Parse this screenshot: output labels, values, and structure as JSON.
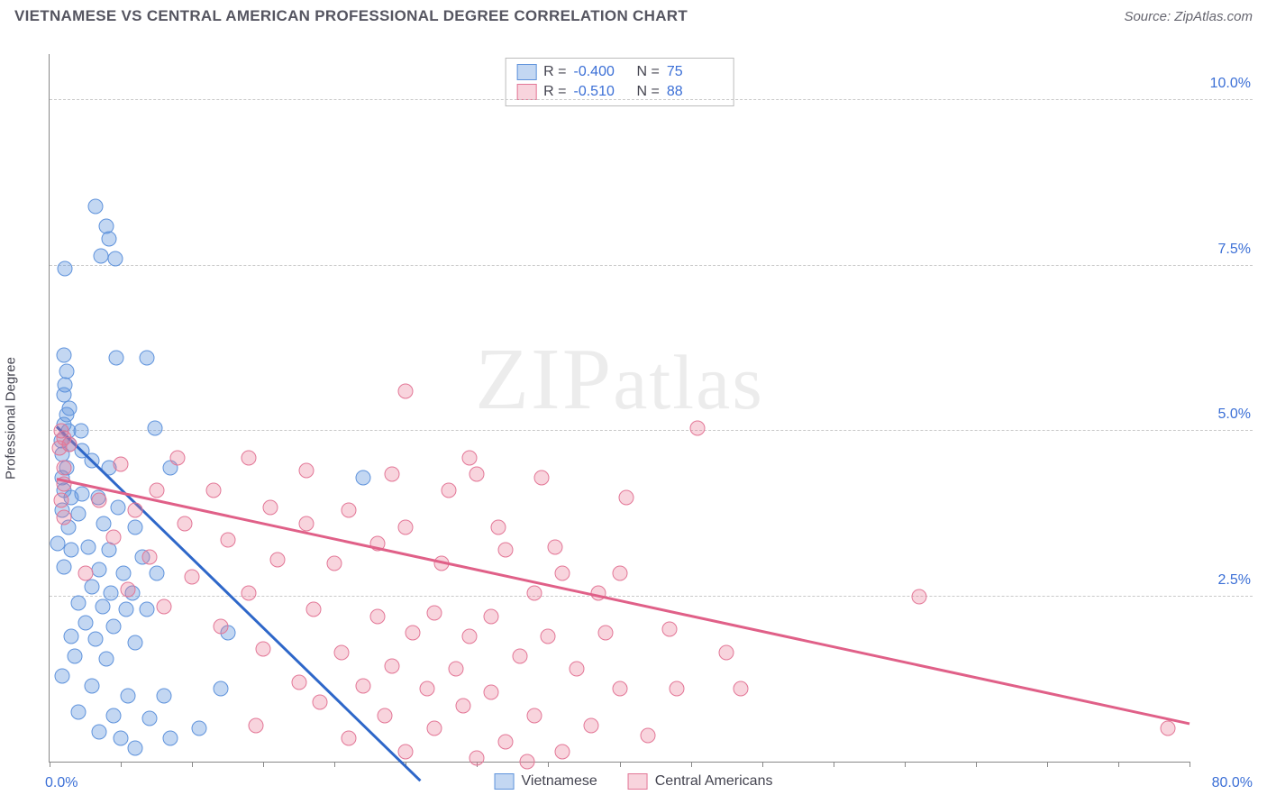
{
  "header": {
    "title": "VIETNAMESE VS CENTRAL AMERICAN PROFESSIONAL DEGREE CORRELATION CHART",
    "source": "Source: ZipAtlas.com"
  },
  "chart": {
    "type": "scatter",
    "ylabel": "Professional Degree",
    "watermark": "ZIPatlas",
    "background_color": "#ffffff",
    "grid_color": "#c9c9c9",
    "axis_color": "#888888",
    "marker_radius": 8.5,
    "marker_border_width": 1,
    "xlim": [
      0,
      80
    ],
    "ylim": [
      0,
      10.7
    ],
    "x_origin_label": "0.0%",
    "x_max_label": "80.0%",
    "x_ticks": [
      0,
      5,
      10,
      15,
      20,
      25,
      30,
      35,
      40,
      45,
      50,
      55,
      60,
      65,
      70,
      75,
      80
    ],
    "y_gridlines": [
      {
        "value": 2.5,
        "label": "2.5%"
      },
      {
        "value": 5.0,
        "label": "5.0%"
      },
      {
        "value": 7.5,
        "label": "7.5%"
      },
      {
        "value": 10.0,
        "label": "10.0%"
      }
    ],
    "series": [
      {
        "key": "vietnamese",
        "label": "Vietnamese",
        "fill": "rgba(96,150,222,0.38)",
        "stroke": "#5f93dc",
        "trend_color": "#2e67c9",
        "r": "-0.400",
        "n": "75",
        "trend": {
          "x1": 0.5,
          "y1": 5.05,
          "x2": 26.0,
          "y2": -0.3
        },
        "points": [
          [
            3.2,
            8.4
          ],
          [
            4.0,
            8.1
          ],
          [
            4.2,
            7.9
          ],
          [
            3.6,
            7.65
          ],
          [
            4.6,
            7.6
          ],
          [
            1.1,
            7.45
          ],
          [
            1.0,
            6.15
          ],
          [
            1.2,
            5.9
          ],
          [
            4.7,
            6.1
          ],
          [
            1.0,
            5.55
          ],
          [
            1.1,
            5.7
          ],
          [
            6.8,
            6.1
          ],
          [
            1.4,
            5.35
          ],
          [
            1.2,
            5.25
          ],
          [
            1.0,
            5.1
          ],
          [
            1.3,
            5.0
          ],
          [
            2.2,
            5.0
          ],
          [
            7.4,
            5.05
          ],
          [
            0.8,
            4.85
          ],
          [
            1.4,
            4.8
          ],
          [
            0.9,
            4.65
          ],
          [
            2.3,
            4.7
          ],
          [
            3.0,
            4.55
          ],
          [
            1.2,
            4.45
          ],
          [
            0.9,
            4.3
          ],
          [
            4.2,
            4.45
          ],
          [
            8.5,
            4.45
          ],
          [
            22.0,
            4.3
          ],
          [
            1.0,
            4.1
          ],
          [
            1.5,
            4.0
          ],
          [
            2.3,
            4.05
          ],
          [
            3.4,
            4.0
          ],
          [
            0.9,
            3.8
          ],
          [
            2.0,
            3.75
          ],
          [
            4.8,
            3.85
          ],
          [
            1.3,
            3.55
          ],
          [
            3.8,
            3.6
          ],
          [
            6.0,
            3.55
          ],
          [
            0.6,
            3.3
          ],
          [
            1.5,
            3.2
          ],
          [
            2.7,
            3.25
          ],
          [
            4.2,
            3.2
          ],
          [
            6.5,
            3.1
          ],
          [
            1.0,
            2.95
          ],
          [
            3.5,
            2.9
          ],
          [
            5.2,
            2.85
          ],
          [
            7.5,
            2.85
          ],
          [
            3.0,
            2.65
          ],
          [
            4.3,
            2.55
          ],
          [
            5.8,
            2.55
          ],
          [
            2.0,
            2.4
          ],
          [
            3.7,
            2.35
          ],
          [
            5.4,
            2.3
          ],
          [
            6.8,
            2.3
          ],
          [
            2.5,
            2.1
          ],
          [
            4.5,
            2.05
          ],
          [
            1.5,
            1.9
          ],
          [
            3.2,
            1.85
          ],
          [
            6.0,
            1.8
          ],
          [
            1.8,
            1.6
          ],
          [
            4.0,
            1.55
          ],
          [
            12.5,
            1.95
          ],
          [
            0.9,
            1.3
          ],
          [
            3.0,
            1.15
          ],
          [
            5.5,
            1.0
          ],
          [
            8.0,
            1.0
          ],
          [
            12.0,
            1.1
          ],
          [
            2.0,
            0.75
          ],
          [
            4.5,
            0.7
          ],
          [
            7.0,
            0.65
          ],
          [
            3.5,
            0.45
          ],
          [
            5.0,
            0.35
          ],
          [
            8.5,
            0.35
          ],
          [
            10.5,
            0.5
          ],
          [
            6.0,
            0.2
          ]
        ]
      },
      {
        "key": "central",
        "label": "Central Americans",
        "fill": "rgba(232,120,150,0.32)",
        "stroke": "#e37797",
        "trend_color": "#e06088",
        "r": "-0.510",
        "n": "88",
        "trend": {
          "x1": 0.5,
          "y1": 4.25,
          "x2": 80.0,
          "y2": 0.55
        },
        "points": [
          [
            25.0,
            5.6
          ],
          [
            45.5,
            5.05
          ],
          [
            0.8,
            5.0
          ],
          [
            1.0,
            4.9
          ],
          [
            0.7,
            4.75
          ],
          [
            1.4,
            4.8
          ],
          [
            9.0,
            4.6
          ],
          [
            14.0,
            4.6
          ],
          [
            29.5,
            4.6
          ],
          [
            1.0,
            4.45
          ],
          [
            5.0,
            4.5
          ],
          [
            18.0,
            4.4
          ],
          [
            24.0,
            4.35
          ],
          [
            30.0,
            4.35
          ],
          [
            34.5,
            4.3
          ],
          [
            1.0,
            4.2
          ],
          [
            7.5,
            4.1
          ],
          [
            11.5,
            4.1
          ],
          [
            28.0,
            4.1
          ],
          [
            0.8,
            3.95
          ],
          [
            3.5,
            3.95
          ],
          [
            40.5,
            4.0
          ],
          [
            6.0,
            3.8
          ],
          [
            15.5,
            3.85
          ],
          [
            21.0,
            3.8
          ],
          [
            1.0,
            3.7
          ],
          [
            9.5,
            3.6
          ],
          [
            18.0,
            3.6
          ],
          [
            25.0,
            3.55
          ],
          [
            31.5,
            3.55
          ],
          [
            4.5,
            3.4
          ],
          [
            12.5,
            3.35
          ],
          [
            23.0,
            3.3
          ],
          [
            35.5,
            3.25
          ],
          [
            32.0,
            3.2
          ],
          [
            7.0,
            3.1
          ],
          [
            16.0,
            3.05
          ],
          [
            20.0,
            3.0
          ],
          [
            27.5,
            3.0
          ],
          [
            2.5,
            2.85
          ],
          [
            10.0,
            2.8
          ],
          [
            36.0,
            2.85
          ],
          [
            40.0,
            2.85
          ],
          [
            5.5,
            2.6
          ],
          [
            14.0,
            2.55
          ],
          [
            34.0,
            2.55
          ],
          [
            38.5,
            2.55
          ],
          [
            61.0,
            2.5
          ],
          [
            8.0,
            2.35
          ],
          [
            18.5,
            2.3
          ],
          [
            27.0,
            2.25
          ],
          [
            23.0,
            2.2
          ],
          [
            31.0,
            2.2
          ],
          [
            12.0,
            2.05
          ],
          [
            25.5,
            1.95
          ],
          [
            29.5,
            1.9
          ],
          [
            35.0,
            1.9
          ],
          [
            39.0,
            1.95
          ],
          [
            43.5,
            2.0
          ],
          [
            15.0,
            1.7
          ],
          [
            20.5,
            1.65
          ],
          [
            33.0,
            1.6
          ],
          [
            47.5,
            1.65
          ],
          [
            24.0,
            1.45
          ],
          [
            28.5,
            1.4
          ],
          [
            37.0,
            1.4
          ],
          [
            17.5,
            1.2
          ],
          [
            22.0,
            1.15
          ],
          [
            26.5,
            1.1
          ],
          [
            31.0,
            1.05
          ],
          [
            40.0,
            1.1
          ],
          [
            44.0,
            1.1
          ],
          [
            48.5,
            1.1
          ],
          [
            19.0,
            0.9
          ],
          [
            29.0,
            0.85
          ],
          [
            23.5,
            0.7
          ],
          [
            34.0,
            0.7
          ],
          [
            14.5,
            0.55
          ],
          [
            27.0,
            0.5
          ],
          [
            38.0,
            0.55
          ],
          [
            21.0,
            0.35
          ],
          [
            32.0,
            0.3
          ],
          [
            42.0,
            0.4
          ],
          [
            25.0,
            0.15
          ],
          [
            36.0,
            0.15
          ],
          [
            78.5,
            0.5
          ],
          [
            30.0,
            0.05
          ],
          [
            33.5,
            0.0
          ]
        ]
      }
    ]
  }
}
